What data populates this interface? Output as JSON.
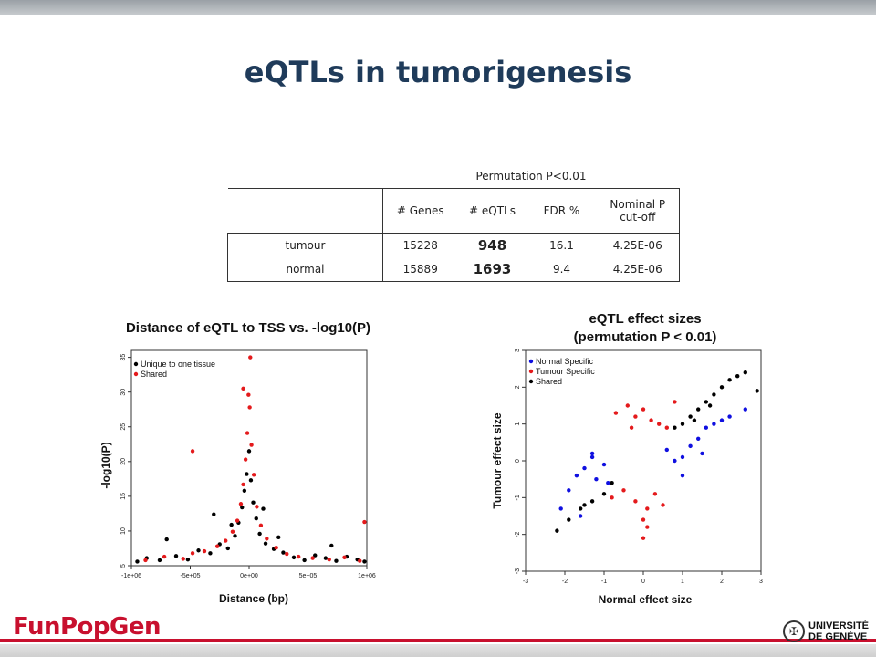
{
  "slide": {
    "title": "eQTLs in tumorigenesis"
  },
  "table": {
    "caption": "Permutation P<0.01",
    "headers": [
      "# Genes",
      "# eQTLs",
      "FDR %",
      "Nominal P\ncut-off"
    ],
    "rows": [
      {
        "label": "tumour",
        "genes": "15228",
        "eqtls": "948",
        "fdr": "16.1",
        "cutoff": "4.25E-06"
      },
      {
        "label": "normal",
        "genes": "15889",
        "eqtls": "1693",
        "fdr": "9.4",
        "cutoff": "4.25E-06"
      }
    ]
  },
  "chart_data": [
    {
      "type": "scatter",
      "title": "Distance of eQTL to TSS vs. -log10(P)",
      "xlabel": "Distance (bp)",
      "ylabel": "-log10(P)",
      "xlim": [
        -1000000,
        1000000
      ],
      "ylim": [
        5,
        36
      ],
      "x_tick_labels": [
        "-1e+06",
        "-5e+05",
        "0e+00",
        "5e+05",
        "1e+06"
      ],
      "x_ticks": [
        -1000000,
        -500000,
        0,
        500000,
        1000000
      ],
      "y_ticks": [
        5,
        10,
        15,
        20,
        25,
        30,
        35
      ],
      "y_tick_labels": [
        "5",
        "10",
        "15",
        "20",
        "25",
        "30",
        "35"
      ],
      "legend": {
        "position": "top-left",
        "entries": [
          "Unique to one tissue",
          "Shared"
        ]
      },
      "series": [
        {
          "name": "Unique to one tissue",
          "color": "#000000",
          "x": [
            -950000,
            -870000,
            -760000,
            -620000,
            -520000,
            -430000,
            -330000,
            -250000,
            -180000,
            -120000,
            -90000,
            -60000,
            -40000,
            -20000,
            0,
            15000,
            35000,
            60000,
            90000,
            140000,
            210000,
            290000,
            380000,
            470000,
            560000,
            650000,
            740000,
            830000,
            920000,
            980000,
            -300000,
            -150000,
            120000,
            250000,
            -700000,
            700000
          ],
          "y": [
            5.6,
            6.1,
            5.8,
            6.4,
            5.9,
            7.2,
            6.8,
            8.1,
            7.5,
            9.3,
            11.2,
            13.4,
            15.8,
            18.2,
            21.5,
            17.3,
            14.1,
            11.8,
            9.6,
            8.2,
            7.4,
            6.9,
            6.2,
            5.8,
            6.5,
            6.1,
            5.7,
            6.3,
            5.9,
            5.6,
            12.4,
            10.9,
            13.2,
            9.1,
            8.8,
            7.9
          ]
        },
        {
          "name": "Shared",
          "color": "#e41a1c",
          "x": [
            -880000,
            -720000,
            -560000,
            -480000,
            -380000,
            -270000,
            -200000,
            -140000,
            -100000,
            -70000,
            -50000,
            -30000,
            -15000,
            -5000,
            5000,
            20000,
            40000,
            65000,
            100000,
            150000,
            230000,
            320000,
            420000,
            540000,
            680000,
            810000,
            940000,
            -480000,
            -50000,
            10000,
            980000
          ],
          "y": [
            5.8,
            6.3,
            6.0,
            6.8,
            7.1,
            7.8,
            8.6,
            9.9,
            11.5,
            13.9,
            16.7,
            20.3,
            24.1,
            29.6,
            27.8,
            22.4,
            18.1,
            13.5,
            10.8,
            8.9,
            7.6,
            6.7,
            6.3,
            6.1,
            5.9,
            6.2,
            5.7,
            21.5,
            30.5,
            35.0,
            11.3
          ]
        }
      ]
    },
    {
      "type": "scatter",
      "title": "eQTL effect sizes",
      "subtitle": "(permutation P < 0.01)",
      "xlabel": "Normal effect size",
      "ylabel": "Tumour effect size",
      "xlim": [
        -3,
        3
      ],
      "ylim": [
        -3,
        3
      ],
      "x_ticks": [
        -3,
        -2,
        -1,
        0,
        1,
        2,
        3
      ],
      "y_ticks": [
        -3,
        -2,
        -1,
        0,
        1,
        2,
        3
      ],
      "tick_labels": [
        "-3",
        "-2",
        "-1",
        "0",
        "1",
        "2",
        "3"
      ],
      "legend": {
        "position": "top-left",
        "entries": [
          "Normal Specific",
          "Tumour Specific",
          "Shared"
        ]
      },
      "series": [
        {
          "name": "Normal Specific",
          "color": "#1010e0",
          "x": [
            -2.1,
            -1.9,
            -1.7,
            -1.5,
            -1.3,
            -1.2,
            -1.0,
            -0.9,
            0.6,
            0.8,
            1.0,
            1.2,
            1.4,
            1.6,
            1.8,
            2.0,
            2.2,
            -1.6,
            -1.3,
            1.0,
            1.5,
            2.6
          ],
          "y": [
            -1.3,
            -0.8,
            -0.4,
            -0.2,
            0.2,
            -0.5,
            -0.1,
            -0.6,
            0.3,
            0.0,
            0.1,
            0.4,
            0.6,
            0.9,
            1.0,
            1.1,
            1.2,
            -1.5,
            0.1,
            -0.4,
            0.2,
            1.4
          ]
        },
        {
          "name": "Tumour Specific",
          "color": "#e41a1c",
          "x": [
            -0.7,
            -0.4,
            -0.2,
            0.0,
            0.2,
            0.4,
            0.6,
            -0.5,
            -0.2,
            0.1,
            0.3,
            -0.8,
            0.0,
            0.5,
            0.8,
            -0.3,
            0.1,
            0.0
          ],
          "y": [
            1.3,
            1.5,
            1.2,
            1.4,
            1.1,
            1.0,
            0.9,
            -0.8,
            -1.1,
            -1.3,
            -0.9,
            -1.0,
            -1.6,
            -1.2,
            1.6,
            0.9,
            -1.8,
            -2.1
          ]
        },
        {
          "name": "Shared",
          "color": "#000000",
          "x": [
            -2.2,
            -1.9,
            -1.6,
            -1.3,
            -1.0,
            -0.8,
            0.8,
            1.0,
            1.2,
            1.4,
            1.6,
            1.8,
            2.0,
            2.2,
            2.4,
            -1.5,
            1.3,
            1.7,
            2.9,
            2.6
          ],
          "y": [
            -1.9,
            -1.6,
            -1.3,
            -1.1,
            -0.9,
            -0.6,
            0.9,
            1.0,
            1.2,
            1.4,
            1.6,
            1.8,
            2.0,
            2.2,
            2.3,
            -1.2,
            1.1,
            1.5,
            1.9,
            2.4
          ]
        }
      ]
    }
  ],
  "footer": {
    "logo_text": "FunPopGen",
    "university_line1": "UNIVERSITÉ",
    "university_line2": "DE GENÈVE"
  },
  "colors": {
    "title": "#1f3b5a",
    "accent_red": "#c8102e"
  }
}
